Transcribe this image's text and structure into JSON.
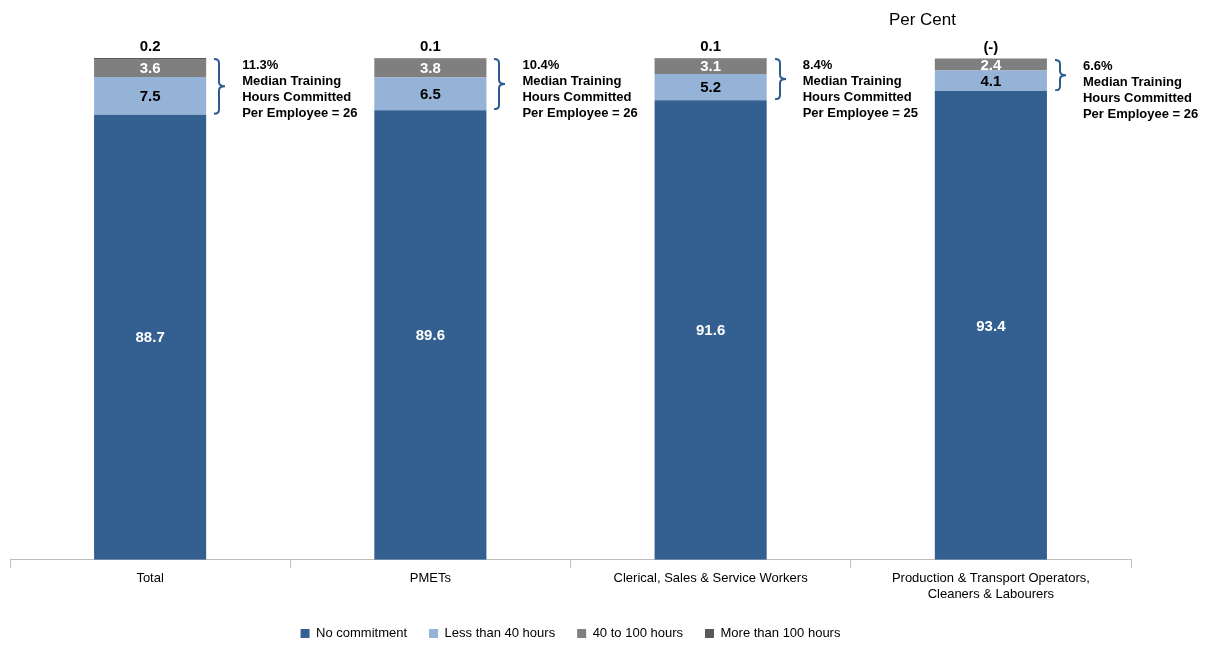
{
  "chart_data": {
    "type": "bar",
    "stacked": true,
    "ylabel": "Per Cent",
    "legend": "bottom",
    "categories": [
      "Total",
      "PMETs",
      "Clerical, Sales & Service Workers",
      "Production & Transport Operators, Cleaners & Labourers"
    ],
    "series": [
      {
        "name": "No commitment",
        "color": "#345f91",
        "values": [
          88.7,
          89.6,
          91.6,
          93.4
        ],
        "value_labels": [
          "88.7",
          "89.6",
          "91.6",
          "93.4"
        ]
      },
      {
        "name": "Less than 40 hours",
        "color": "#95b3d7",
        "values": [
          7.5,
          6.5,
          5.2,
          4.1
        ],
        "value_labels": [
          "7.5",
          "6.5",
          "5.2",
          "4.1"
        ]
      },
      {
        "name": "40 to 100 hours",
        "color": "#7f7f7f",
        "values": [
          3.6,
          3.8,
          3.1,
          2.4
        ],
        "value_labels": [
          "3.6",
          "3.8",
          "3.1",
          "2.4"
        ]
      },
      {
        "name": "More than 100 hours",
        "color": "#595959",
        "values": [
          0.2,
          0.1,
          0.1,
          0
        ],
        "value_labels": [
          "0.2",
          "0.1",
          "0.1",
          "(-)"
        ]
      }
    ],
    "annotations": [
      "11.3%\nMedian Training Hours Committed Per Employee = 26",
      "10.4%\nMedian Training Hours Committed Per Employee = 26",
      "8.4%\nMedian Training Hours Committed Per Employee = 25",
      "6.6%\nMedian Training Hours Committed Per Employee = 26"
    ]
  }
}
